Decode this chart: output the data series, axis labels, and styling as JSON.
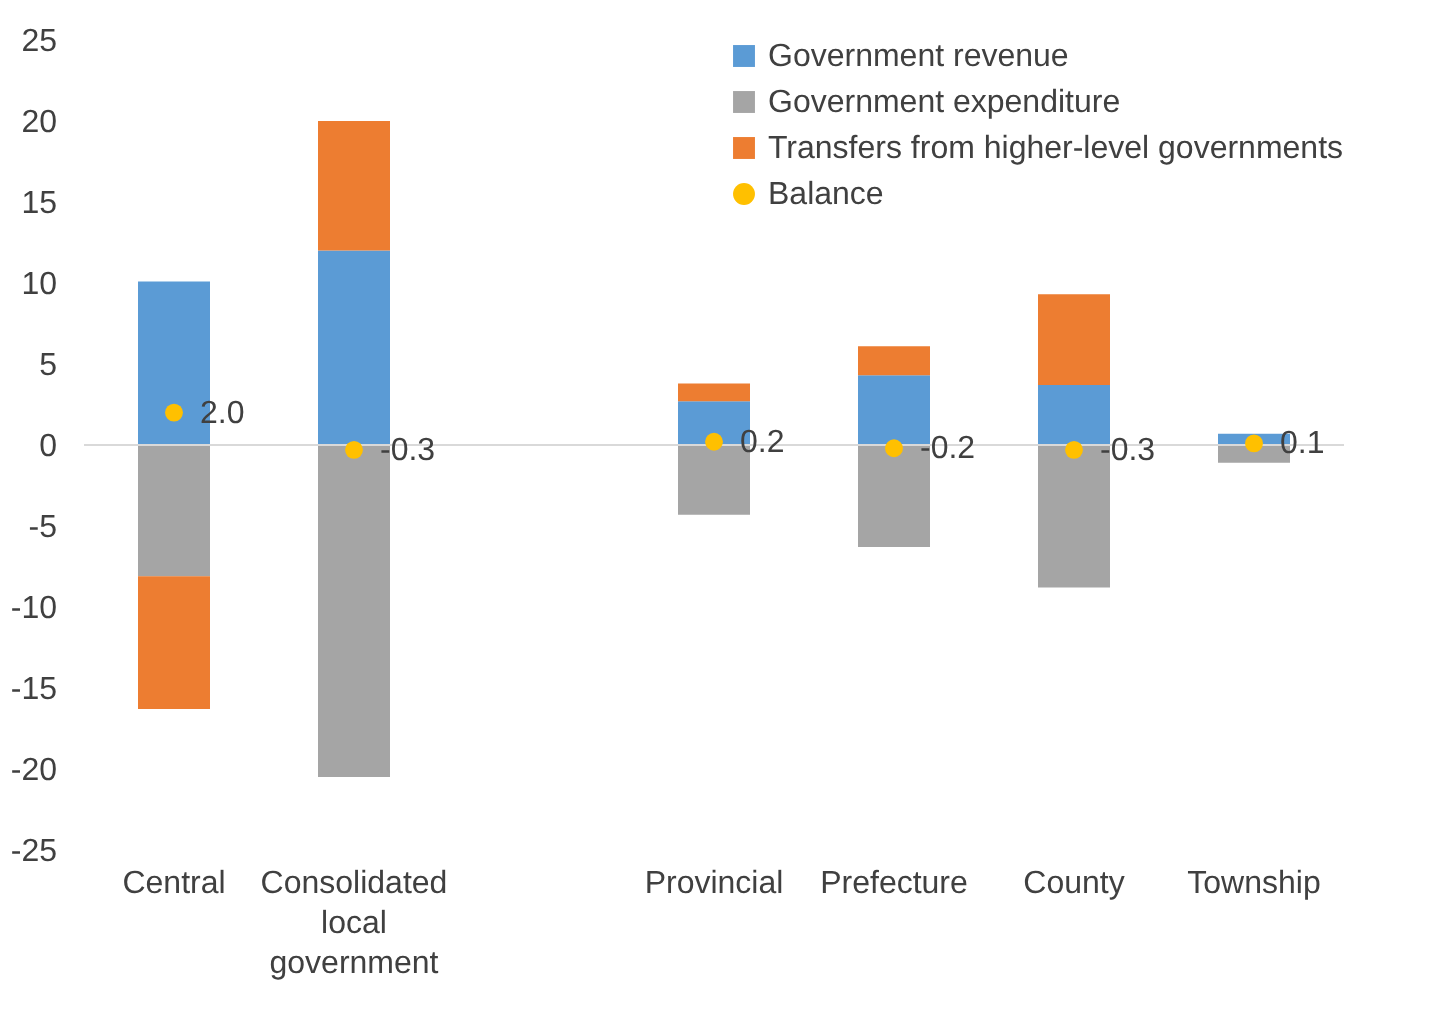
{
  "chart_data": {
    "type": "bar",
    "stacked": true,
    "categories": [
      "Central",
      "Consolidated local government",
      null,
      "Provincial",
      "Prefecture",
      "County",
      "Township"
    ],
    "series": [
      {
        "name": "Government revenue",
        "color": "#5b9bd5",
        "values": [
          10.1,
          12.0,
          null,
          2.7,
          4.3,
          3.7,
          0.7
        ]
      },
      {
        "name": "Government expenditure",
        "color": "#a5a5a5",
        "values": [
          -8.1,
          -20.5,
          null,
          -4.3,
          -6.3,
          -8.8,
          -1.1
        ]
      },
      {
        "name": "Transfers from higher-level governments",
        "color": "#ed7d31",
        "values": [
          -8.2,
          8.0,
          null,
          1.1,
          1.8,
          5.6,
          null
        ]
      },
      {
        "name": "Balance",
        "type": "scatter",
        "color": "#ffc000",
        "values": [
          2.0,
          -0.3,
          null,
          0.2,
          -0.2,
          -0.3,
          0.1
        ],
        "value_labels": [
          "2.0",
          "-0.3",
          null,
          "0.2",
          "-0.2",
          "-0.3",
          "0.1"
        ]
      }
    ],
    "ylim": [
      -25,
      25
    ],
    "yticks": [
      -25,
      -20,
      -15,
      -10,
      -5,
      0,
      5,
      10,
      15,
      20,
      25
    ],
    "ref_lines": [
      {
        "axis": "y",
        "value": 0,
        "color": "#d9d9d9"
      }
    ],
    "grid": false,
    "legend": "top right",
    "marker": "circle"
  }
}
